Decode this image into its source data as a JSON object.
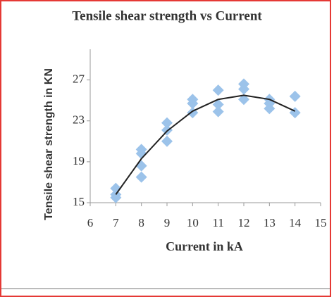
{
  "chart_data": {
    "type": "scatter",
    "title": "Tensile shear strength vs Current",
    "x_label": "Current in kA",
    "y_label": "Tensile shear strength in KN",
    "xlim": [
      6,
      15
    ],
    "xticks": [
      6,
      7,
      8,
      9,
      10,
      11,
      12,
      13,
      14,
      15
    ],
    "ylim": [
      15,
      30
    ],
    "yticks": [
      15,
      19,
      23,
      27
    ],
    "series": [
      {
        "color": "#9cc3ea",
        "x": [
          7,
          7,
          7,
          8,
          8,
          8,
          8,
          9,
          9,
          9,
          10,
          10,
          10,
          11,
          11,
          11,
          12,
          12,
          12,
          13,
          13,
          13,
          14,
          14
        ],
        "values": [
          16.4,
          15.8,
          15.5,
          20.2,
          19.8,
          18.6,
          17.5,
          22.8,
          22.1,
          21.0,
          25.1,
          24.7,
          23.8,
          26.0,
          24.6,
          23.9,
          26.6,
          26.1,
          25.1,
          25.1,
          24.7,
          24.2,
          25.4,
          23.8
        ]
      }
    ],
    "trendline": {
      "color": "#222222",
      "x": [
        7,
        8,
        9,
        10,
        11,
        12,
        13,
        14
      ],
      "values": [
        15.8,
        19.3,
        22.0,
        23.95,
        25.1,
        25.5,
        25.1,
        23.95
      ]
    }
  }
}
